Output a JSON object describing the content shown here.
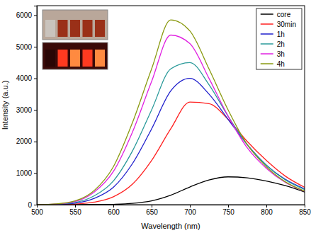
{
  "chart_data": {
    "type": "line",
    "x_label": "Wavelength (nm)",
    "y_label": "Intensity (a.u.)",
    "x": [
      500,
      525,
      550,
      575,
      600,
      625,
      650,
      675,
      700,
      725,
      750,
      775,
      800,
      825,
      850
    ],
    "xlim": [
      500,
      850
    ],
    "xticks": [
      500,
      550,
      600,
      650,
      700,
      750,
      800,
      850
    ],
    "ylim": [
      0,
      6300
    ],
    "yticks": [
      0,
      1000,
      2000,
      3000,
      4000,
      5000,
      6000
    ],
    "grid": false,
    "legend": "upper right",
    "series": [
      {
        "name": "core",
        "color": "#000000",
        "values": [
          0,
          0,
          0,
          0,
          10,
          40,
          120,
          300,
          560,
          780,
          880,
          850,
          750,
          600,
          400
        ]
      },
      {
        "name": "30min",
        "color": "#ff2020",
        "values": [
          0,
          5,
          20,
          80,
          250,
          650,
          1400,
          2400,
          3250,
          3200,
          2700,
          2000,
          1400,
          900,
          550
        ]
      },
      {
        "name": "1h",
        "color": "#1f1fcc",
        "values": [
          0,
          10,
          50,
          200,
          550,
          1300,
          2400,
          3600,
          4000,
          3500,
          2700,
          1900,
          1250,
          800,
          500
        ]
      },
      {
        "name": "2h",
        "color": "#2a9a9a",
        "values": [
          0,
          15,
          70,
          280,
          750,
          1700,
          3000,
          4300,
          4500,
          3800,
          2800,
          1900,
          1250,
          780,
          480
        ]
      },
      {
        "name": "3h",
        "color": "#e020e0",
        "values": [
          0,
          20,
          100,
          400,
          1050,
          2300,
          3900,
          5370,
          5100,
          4000,
          2800,
          1800,
          1150,
          700,
          420
        ]
      },
      {
        "name": "4h",
        "color": "#8a9a10",
        "values": [
          0,
          25,
          120,
          450,
          1200,
          2600,
          4300,
          5850,
          5500,
          4300,
          3000,
          1900,
          1200,
          720,
          430
        ]
      }
    ]
  }
}
